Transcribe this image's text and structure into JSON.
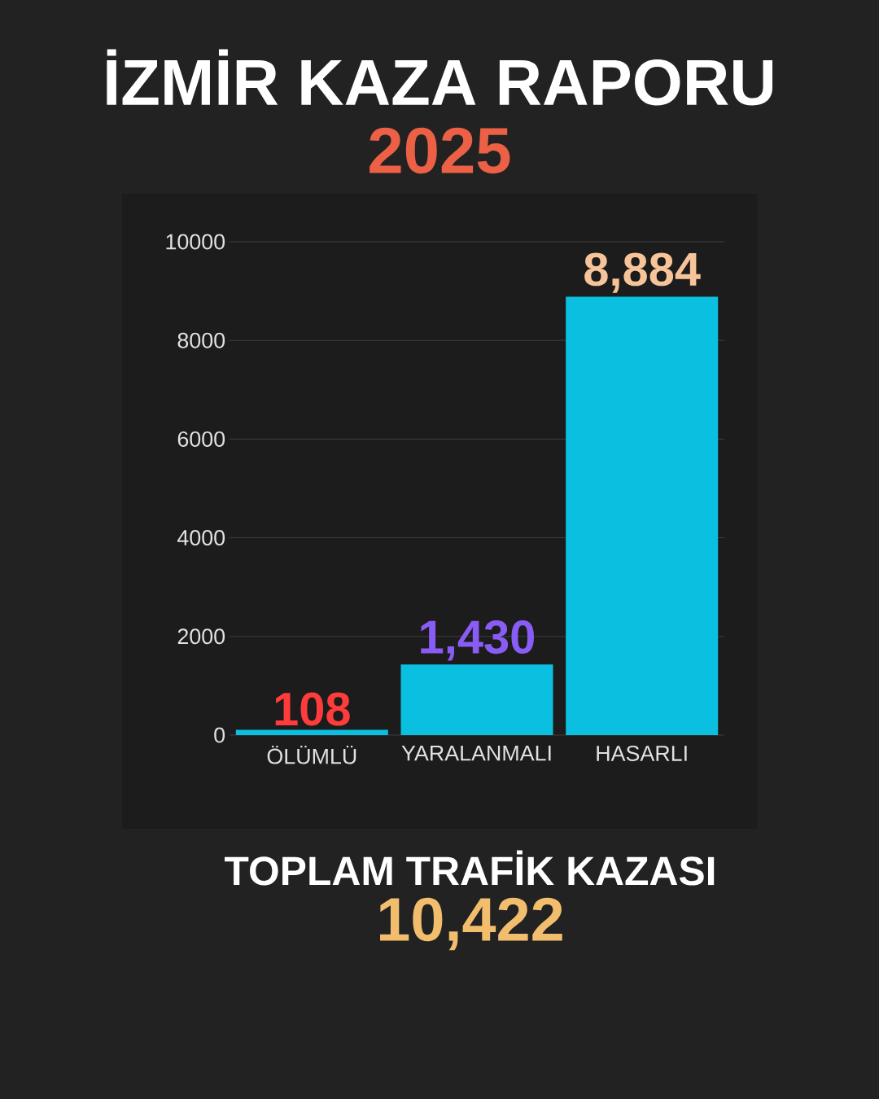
{
  "chart_data": {
    "type": "bar",
    "title": "İZMİR KAZA RAPORU",
    "subtitle": "2025",
    "categories": [
      "ÖLÜMLÜ",
      "YARALANMALI",
      "HASARLI"
    ],
    "values": [
      108,
      1430,
      8884
    ],
    "value_labels": [
      "108",
      "1,430",
      "8,884"
    ],
    "color": "#0bbfe0",
    "ylim": [
      0,
      10000
    ],
    "yticks": [
      0,
      2000,
      4000,
      6000,
      8000,
      10000
    ],
    "grid": "y",
    "annotations": [
      "TOPLAM TRAFİK KAZASI",
      "10,422"
    ]
  }
}
